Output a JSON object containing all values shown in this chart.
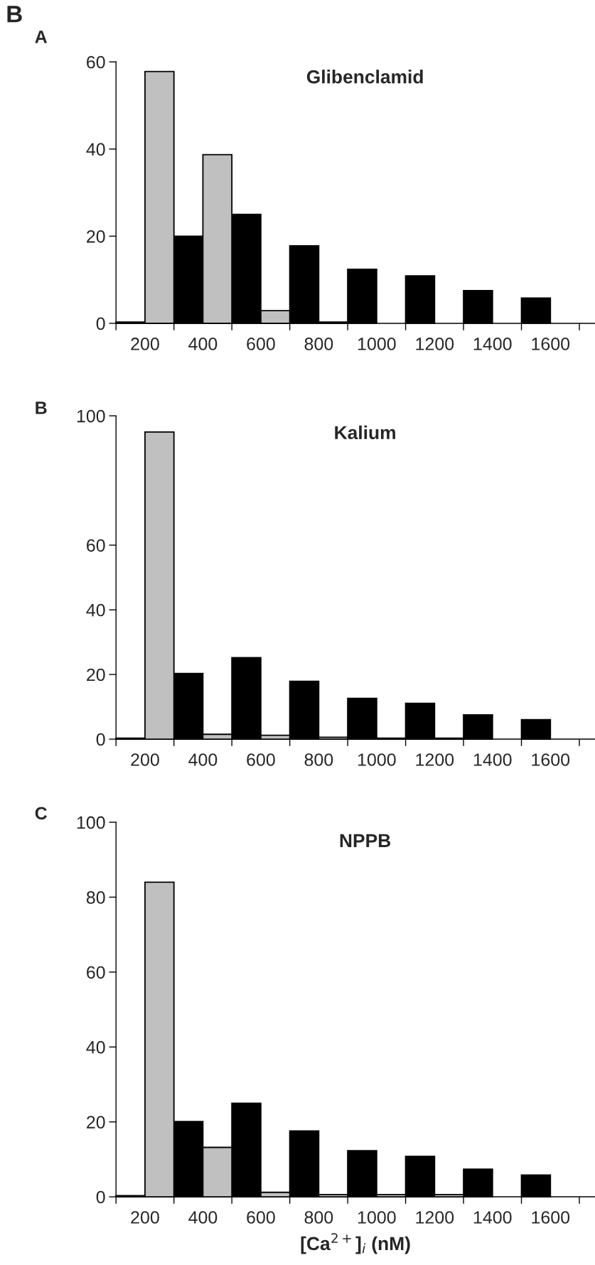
{
  "chart_data": [
    {
      "type": "bar",
      "title": "Glibenclamid",
      "annotations": [
        "B",
        "A"
      ],
      "categories": [
        "200",
        "400",
        "600",
        "800",
        "1000",
        "1200",
        "1400",
        "1600"
      ],
      "series": [
        {
          "color": "#000000",
          "values": [
            0.3,
            20,
            25,
            17.8,
            12.4,
            10.9,
            7.5,
            5.8
          ]
        },
        {
          "color": "#c0c0c0",
          "values": [
            57.8,
            38.7,
            2.9,
            0.3,
            null,
            null,
            null,
            null
          ]
        }
      ],
      "ylim": [
        0,
        60
      ],
      "yticks": [
        0,
        20,
        40,
        60
      ]
    },
    {
      "type": "bar",
      "title": "Kalium",
      "annotations": [
        "B"
      ],
      "categories": [
        "200",
        "400",
        "600",
        "800",
        "1000",
        "1200",
        "1400",
        "1600"
      ],
      "series": [
        {
          "color": "#000000",
          "values": [
            0.3,
            20.3,
            25.2,
            17.9,
            12.6,
            11.1,
            7.5,
            6
          ]
        },
        {
          "color": "#c0c0c0",
          "values": [
            95,
            1.5,
            1.2,
            0.6,
            0.3,
            0.3,
            null,
            null
          ]
        }
      ],
      "ylim": [
        0,
        100
      ],
      "yticks": [
        0,
        20,
        40,
        60,
        100
      ]
    },
    {
      "type": "bar",
      "title": "NPPB",
      "xlabel": "[Ca$^{2+}$]$_{i}$ (nM)",
      "annotations": [
        "C"
      ],
      "categories": [
        "200",
        "400",
        "600",
        "800",
        "1000",
        "1200",
        "1400",
        "1600"
      ],
      "series": [
        {
          "color": "#000000",
          "values": [
            0.3,
            20.1,
            25,
            17.6,
            12.3,
            10.8,
            7.4,
            5.8
          ]
        },
        {
          "color": "#c0c0c0",
          "values": [
            84,
            13.2,
            1.2,
            0.6,
            0.6,
            0.6,
            null,
            null
          ]
        }
      ],
      "ylim": [
        0,
        100
      ],
      "yticks": [
        0,
        20,
        40,
        60,
        80,
        100
      ]
    }
  ]
}
